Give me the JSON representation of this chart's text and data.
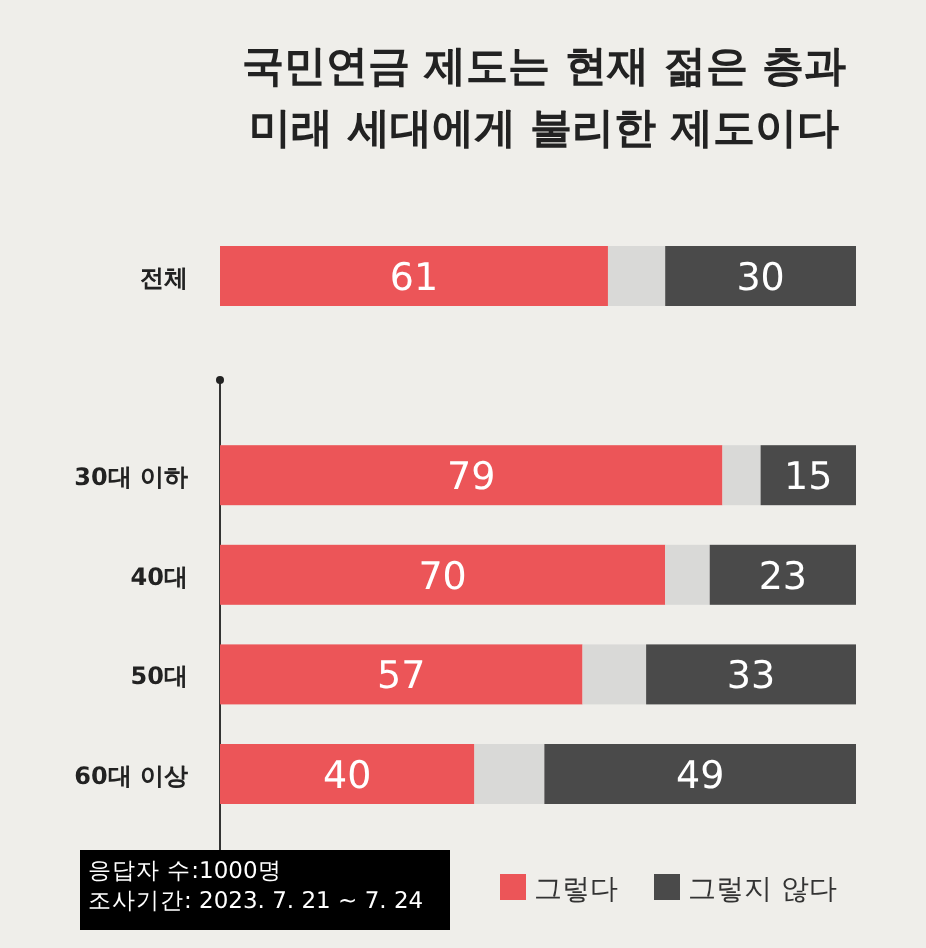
{
  "chart_data": {
    "type": "bar",
    "orientation": "horizontal",
    "stacked": true,
    "title": "국민연금 제도는 현재 젊은 층과\n미래 세대에게 불리한 제도이다",
    "categories": [
      "전체",
      null,
      "30대 이하",
      "40대",
      "50대",
      "60대 이상"
    ],
    "series": [
      {
        "name": "그렇다",
        "color": "#ec5558",
        "values": [
          61,
          null,
          79,
          70,
          57,
          40
        ],
        "value_labels": [
          "61",
          null,
          "79",
          "70",
          "57",
          "40"
        ]
      },
      {
        "color": "#d9d9d7",
        "values": [
          9,
          null,
          6,
          7,
          10,
          11
        ]
      },
      {
        "name": "그렇지 않다",
        "color": "#4a4a4a",
        "values": [
          30,
          null,
          15,
          23,
          33,
          49
        ],
        "value_labels": [
          "30",
          null,
          "15",
          "23",
          "33",
          "49"
        ]
      }
    ],
    "legend": "bottom right",
    "annotations": [
      "응답자 수:1000명",
      "조사기간: 2023. 7. 21 ~ 7. 24"
    ]
  }
}
